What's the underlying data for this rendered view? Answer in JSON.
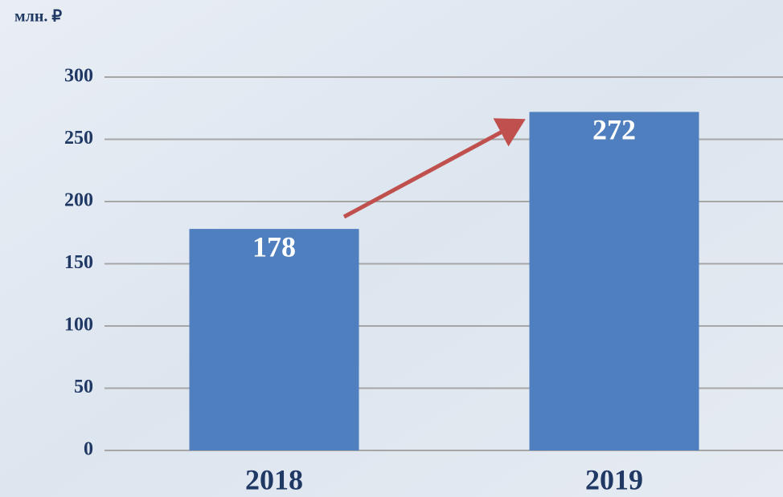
{
  "chart_data": {
    "type": "bar",
    "y_label": "млн. ₽",
    "categories": [
      "2018",
      "2019"
    ],
    "values": [
      178,
      272
    ],
    "color": "#4f7fbf",
    "ylim": [
      0,
      300
    ],
    "yticks": [
      0,
      50,
      100,
      150,
      200,
      250,
      300
    ],
    "grid": true
  }
}
